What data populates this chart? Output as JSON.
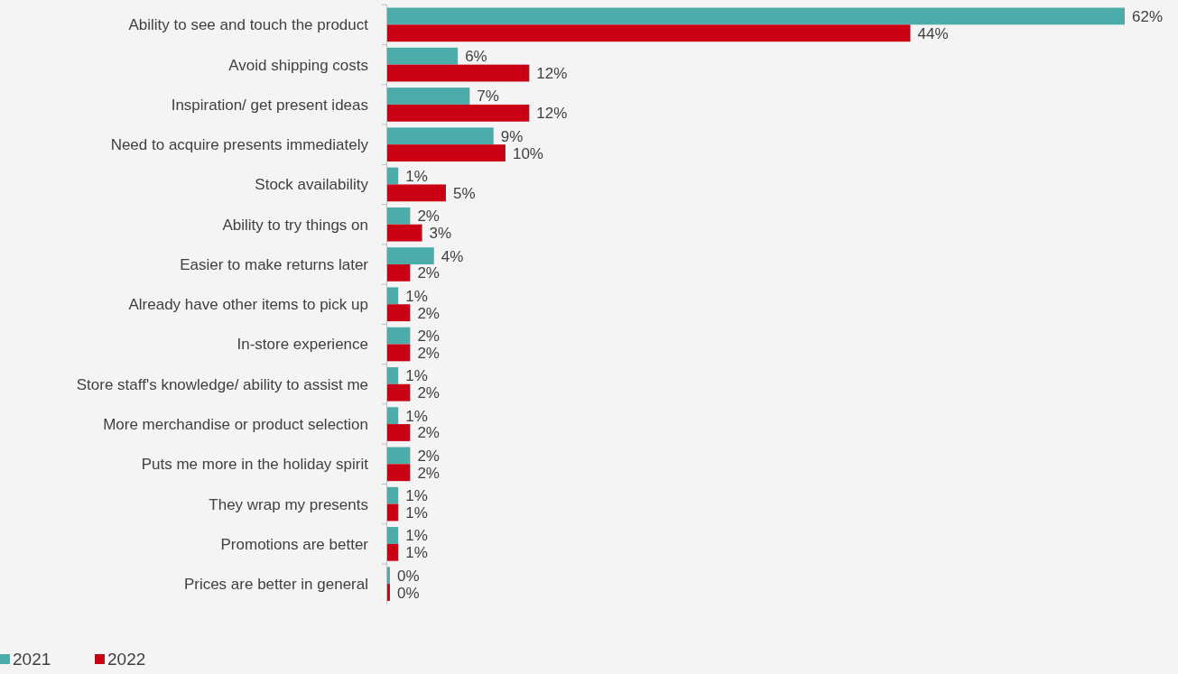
{
  "chart_data": {
    "type": "bar",
    "orientation": "horizontal",
    "categories": [
      "Ability to see and touch the product",
      "Avoid shipping costs",
      "Inspiration/ get present ideas",
      "Need to acquire presents immediately",
      "Stock availability",
      "Ability to try things on",
      "Easier to make returns later",
      "Already have other items to pick up",
      "In-store experience",
      "Store staff's knowledge/ ability to assist me",
      "More merchandise or product selection",
      "Puts me more in the holiday spirit",
      "They wrap my presents",
      "Promotions are better",
      "Prices are better in general"
    ],
    "series": [
      {
        "name": "2021",
        "color": "#4bacaa",
        "values": [
          62,
          6,
          7,
          9,
          1,
          2,
          4,
          1,
          2,
          1,
          1,
          2,
          1,
          1,
          0.3
        ],
        "value_labels": [
          "62%",
          "6%",
          "7%",
          "9%",
          "1%",
          "2%",
          "4%",
          "1%",
          "2%",
          "1%",
          "1%",
          "2%",
          "1%",
          "1%",
          "0%"
        ]
      },
      {
        "name": "2022",
        "color": "#cc0014",
        "values": [
          44,
          12,
          12,
          10,
          5,
          3,
          2,
          2,
          2,
          2,
          2,
          2,
          1,
          1,
          0.3
        ],
        "value_labels": [
          "44%",
          "12%",
          "12%",
          "10%",
          "5%",
          "3%",
          "2%",
          "2%",
          "2%",
          "2%",
          "2%",
          "2%",
          "1%",
          "1%",
          "0%"
        ]
      }
    ],
    "legend": "bottom left"
  }
}
